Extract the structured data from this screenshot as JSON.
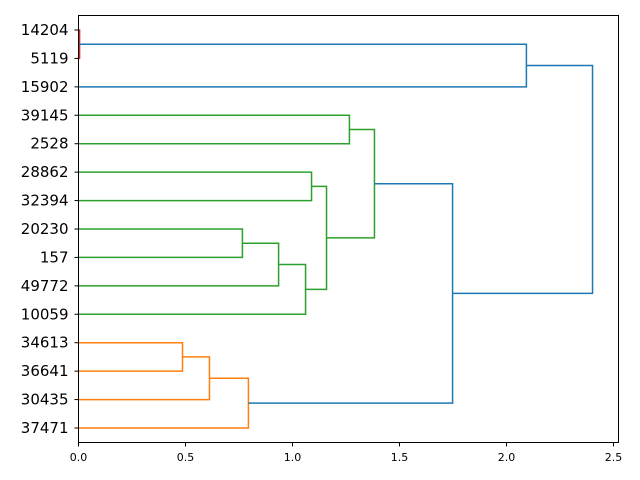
{
  "chart_data": {
    "type": "dendrogram",
    "title": "",
    "xlabel": "",
    "ylabel": "",
    "orientation": "left",
    "xlim": [
      0,
      2.52
    ],
    "xticks": [
      "0.0",
      "0.5",
      "1.0",
      "1.5",
      "2.0",
      "2.5"
    ],
    "xtick_values": [
      0,
      0.5,
      1.0,
      1.5,
      2.0,
      2.5
    ],
    "leaves": [
      "14204",
      "5119",
      "15902",
      "39145",
      "2528",
      "28862",
      "32394",
      "20230",
      "157",
      "49772",
      "10059",
      "34613",
      "36641",
      "30435",
      "37471"
    ],
    "colors": {
      "blue": "#1f77b4",
      "green": "#2ca02c",
      "orange": "#ff7f0e",
      "red": "#d62728"
    },
    "links": [
      {
        "children": [
          "L0",
          "L1"
        ],
        "height": 0.005,
        "color": "#d62728"
      },
      {
        "children": [
          "N0",
          "L2"
        ],
        "height": 2.093,
        "color": "#1f77b4"
      },
      {
        "children": [
          "L3",
          "L4"
        ],
        "height": 1.266,
        "color": "#2ca02c"
      },
      {
        "children": [
          "L5",
          "L6"
        ],
        "height": 1.089,
        "color": "#2ca02c"
      },
      {
        "children": [
          "L7",
          "L8"
        ],
        "height": 0.766,
        "color": "#2ca02c"
      },
      {
        "children": [
          "N4",
          "L9"
        ],
        "height": 0.935,
        "color": "#2ca02c"
      },
      {
        "children": [
          "N5",
          "L10"
        ],
        "height": 1.061,
        "color": "#2ca02c"
      },
      {
        "children": [
          "N3",
          "N6"
        ],
        "height": 1.159,
        "color": "#2ca02c"
      },
      {
        "children": [
          "N2",
          "N7"
        ],
        "height": 1.383,
        "color": "#2ca02c"
      },
      {
        "children": [
          "L11",
          "L12"
        ],
        "height": 0.486,
        "color": "#ff7f0e"
      },
      {
        "children": [
          "N9",
          "L13"
        ],
        "height": 0.612,
        "color": "#ff7f0e"
      },
      {
        "children": [
          "N10",
          "L14"
        ],
        "height": 0.794,
        "color": "#ff7f0e"
      },
      {
        "children": [
          "N8",
          "N11"
        ],
        "height": 1.748,
        "color": "#1f77b4"
      },
      {
        "children": [
          "N1",
          "N12"
        ],
        "height": 2.402,
        "color": "#1f77b4"
      }
    ]
  }
}
